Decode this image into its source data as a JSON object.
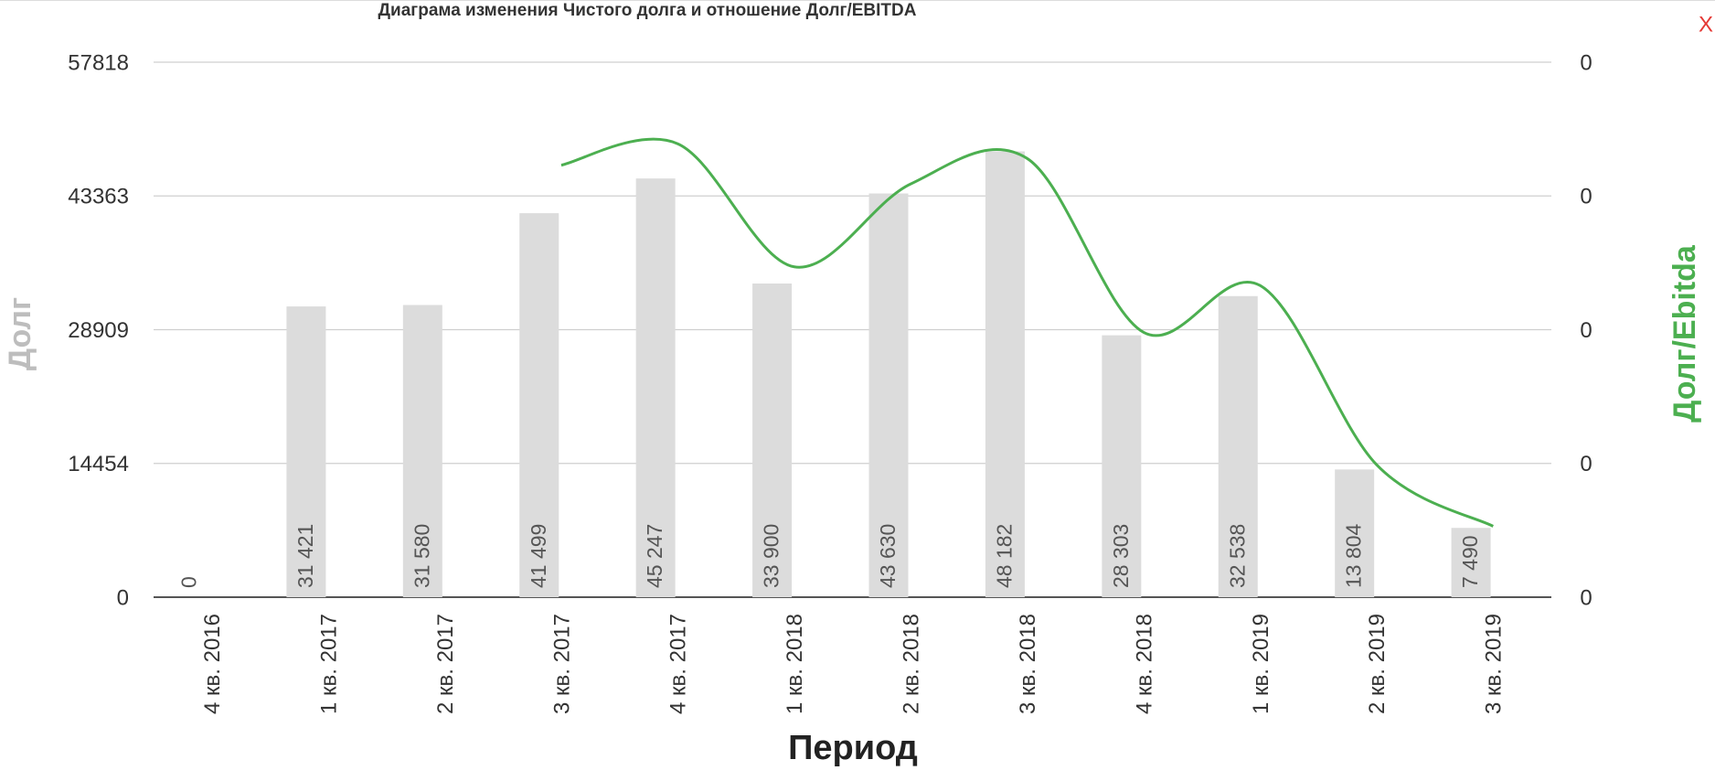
{
  "close_button": "X",
  "chart_data": {
    "type": "bar-line",
    "title": "Диаграма изменения Чистого долга и отношение Долг/EBITDA",
    "x_label": "Период",
    "y_label": "Долг",
    "y2_label": "Долг/Ebitda",
    "categories": [
      "4 кв. 2016",
      "1 кв. 2017",
      "2 кв. 2017",
      "3 кв. 2017",
      "4 кв. 2017",
      "1 кв. 2018",
      "2 кв. 2018",
      "3 кв. 2018",
      "4 кв. 2018",
      "1 кв. 2019",
      "2 кв. 2019",
      "3 кв. 2019"
    ],
    "series": [
      {
        "name": "Долг",
        "type": "bar",
        "color": "#dcdcdc",
        "values": [
          0,
          31421,
          31580,
          41499,
          45247,
          33900,
          43630,
          48182,
          28303,
          32538,
          13804,
          7490
        ],
        "value_labels": [
          "0",
          "31 421",
          "31 580",
          "41 499",
          "45 247",
          "33 900",
          "43 630",
          "48 182",
          "28 303",
          "32 538",
          "13 804",
          "7 490"
        ]
      },
      {
        "name": "Долг/Ebitda",
        "type": "line",
        "axis": "y2",
        "color": "#4caf50",
        "values": [
          null,
          null,
          null,
          0.323,
          0.339,
          0.247,
          0.309,
          0.328,
          0.198,
          0.233,
          0.099,
          0.053
        ]
      }
    ],
    "ylim": [
      0,
      57818
    ],
    "yticks": [
      0,
      14454,
      28909,
      43363,
      57818
    ],
    "y2lim": [
      0,
      0.4
    ],
    "y2ticks": [
      {
        "value": 0,
        "label": "0"
      },
      {
        "value": 0.1,
        "label": "0"
      },
      {
        "value": 0.2,
        "label": "0"
      },
      {
        "value": 0.3,
        "label": "0"
      },
      {
        "value": 0.4,
        "label": "0"
      }
    ],
    "grid": true
  }
}
